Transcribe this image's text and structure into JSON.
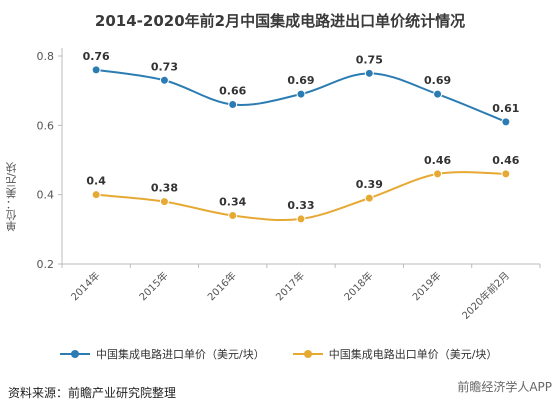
{
  "chart_data": {
    "type": "line",
    "title": "2014-2020年前2月中国集成电路进出口单价统计情况",
    "ylabel": "单位：美元/块",
    "categories": [
      "2014年",
      "2015年",
      "2016年",
      "2017年",
      "2018年",
      "2019年",
      "2020年前2月"
    ],
    "ylim": [
      0.2,
      0.8
    ],
    "yticks": [
      "0.2",
      "0.4",
      "0.6",
      "0.8"
    ],
    "grid": false,
    "legend_position": "bottom",
    "series": [
      {
        "name": "中国集成电路进口单价（美元/块）",
        "color": "#2b7cb3",
        "values": [
          0.76,
          0.73,
          0.66,
          0.69,
          0.75,
          0.69,
          0.61
        ],
        "labels": [
          "0.76",
          "0.73",
          "0.66",
          "0.69",
          "0.75",
          "0.69",
          "0.61"
        ]
      },
      {
        "name": "中国集成电路出口单价（美元/块）",
        "color": "#e6a933",
        "values": [
          0.4,
          0.38,
          0.34,
          0.33,
          0.39,
          0.46,
          0.46
        ],
        "labels": [
          "0.4",
          "0.38",
          "0.34",
          "0.33",
          "0.39",
          "0.46",
          "0.46"
        ]
      }
    ]
  },
  "source_text": "资料来源：前瞻产业研究院整理",
  "watermark_text": "前瞻经济学人APP"
}
